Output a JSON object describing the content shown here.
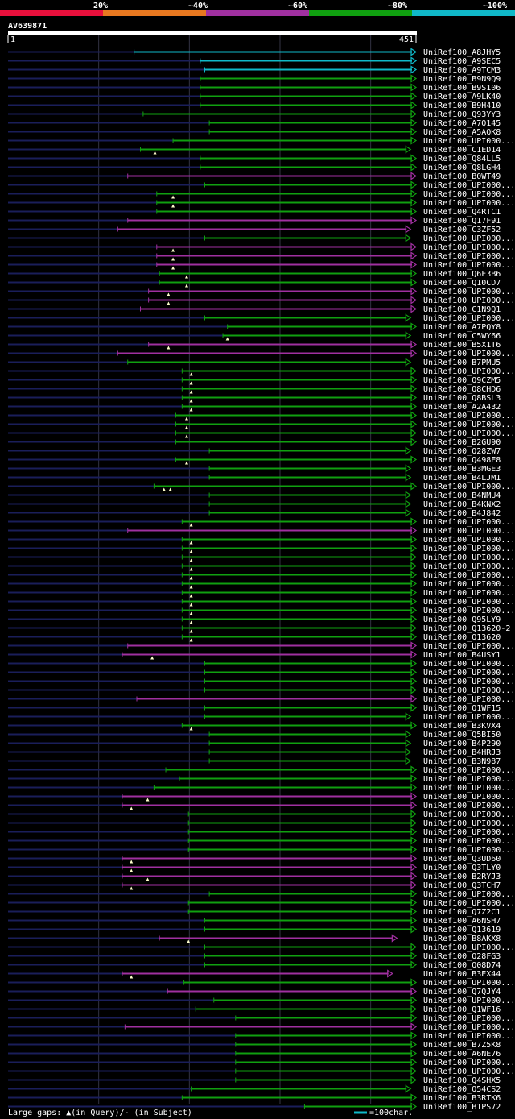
{
  "query_id": "AV639871",
  "query_start": "1",
  "query_end": "451",
  "query_length": 451,
  "legend": {
    "labels": [
      "20%",
      "~40%",
      "~60%",
      "~80%",
      "~100%"
    ],
    "colors": [
      "#e8103c",
      "#e87820",
      "#a030a0",
      "#10a010",
      "#10b8c8"
    ]
  },
  "footer": {
    "text": "Large gaps: ▲(in Query)/- (in Subject)",
    "scale": "=100char."
  },
  "chart_data": {
    "type": "alignment",
    "x_range": [
      1,
      451
    ],
    "grid_step": 100,
    "level_colors": {
      "cyan": "#10b8c8",
      "green": "#10a010",
      "magenta": "#a030a0"
    },
    "hits": [
      {
        "name": "UniRef100_A8JHY5",
        "start": 140,
        "end": 451,
        "level": "cyan",
        "ins": []
      },
      {
        "name": "UniRef100_A9SEC5",
        "start": 213,
        "end": 451,
        "level": "cyan",
        "ins": []
      },
      {
        "name": "UniRef100_A9TCM3",
        "start": 218,
        "end": 451,
        "level": "cyan",
        "ins": []
      },
      {
        "name": "UniRef100_B9N9Q9",
        "start": 213,
        "end": 451,
        "level": "green",
        "ins": []
      },
      {
        "name": "UniRef100_B9S106",
        "start": 213,
        "end": 451,
        "level": "green",
        "ins": []
      },
      {
        "name": "UniRef100_A9LK40",
        "start": 213,
        "end": 451,
        "level": "green",
        "ins": []
      },
      {
        "name": "UniRef100_B9H410",
        "start": 213,
        "end": 451,
        "level": "green",
        "ins": []
      },
      {
        "name": "UniRef100_Q93YY3",
        "start": 150,
        "end": 451,
        "level": "green",
        "ins": []
      },
      {
        "name": "UniRef100_A7Q145",
        "start": 223,
        "end": 451,
        "level": "green",
        "ins": []
      },
      {
        "name": "UniRef100_A5AQK8",
        "start": 223,
        "end": 451,
        "level": "green",
        "ins": []
      },
      {
        "name": "UniRef100_UPI000...",
        "start": 183,
        "end": 451,
        "level": "green",
        "ins": []
      },
      {
        "name": "UniRef100_C1ED14",
        "start": 147,
        "end": 445,
        "level": "green",
        "ins": [
          163
        ]
      },
      {
        "name": "UniRef100_Q84LL5",
        "start": 213,
        "end": 451,
        "level": "green",
        "ins": []
      },
      {
        "name": "UniRef100_Q8LGH4",
        "start": 213,
        "end": 451,
        "level": "green",
        "ins": []
      },
      {
        "name": "UniRef100_B0WT49",
        "start": 133,
        "end": 451,
        "level": "magenta",
        "ins": []
      },
      {
        "name": "UniRef100_UPI000...",
        "start": 218,
        "end": 451,
        "level": "green",
        "ins": []
      },
      {
        "name": "UniRef100_UPI000...",
        "start": 165,
        "end": 451,
        "level": "green",
        "ins": [
          183
        ]
      },
      {
        "name": "UniRef100_UPI000...",
        "start": 165,
        "end": 451,
        "level": "green",
        "ins": [
          183
        ]
      },
      {
        "name": "UniRef100_Q4RTC1",
        "start": 165,
        "end": 451,
        "level": "green",
        "ins": []
      },
      {
        "name": "UniRef100_Q17F91",
        "start": 133,
        "end": 451,
        "level": "magenta",
        "ins": []
      },
      {
        "name": "UniRef100_C3ZF52",
        "start": 122,
        "end": 445,
        "level": "magenta",
        "ins": []
      },
      {
        "name": "UniRef100_UPI000...",
        "start": 218,
        "end": 445,
        "level": "green",
        "ins": []
      },
      {
        "name": "UniRef100_UPI000...",
        "start": 165,
        "end": 451,
        "level": "magenta",
        "ins": [
          183
        ]
      },
      {
        "name": "UniRef100_UPI000...",
        "start": 165,
        "end": 451,
        "level": "magenta",
        "ins": [
          183
        ]
      },
      {
        "name": "UniRef100_UPI000...",
        "start": 165,
        "end": 451,
        "level": "magenta",
        "ins": [
          183
        ]
      },
      {
        "name": "UniRef100_Q6F3B6",
        "start": 168,
        "end": 451,
        "level": "green",
        "ins": [
          198
        ]
      },
      {
        "name": "UniRef100_Q10CD7",
        "start": 168,
        "end": 451,
        "level": "green",
        "ins": [
          198
        ]
      },
      {
        "name": "UniRef100_UPI000...",
        "start": 156,
        "end": 451,
        "level": "magenta",
        "ins": [
          178
        ]
      },
      {
        "name": "UniRef100_UPI000...",
        "start": 156,
        "end": 451,
        "level": "magenta",
        "ins": [
          178
        ]
      },
      {
        "name": "UniRef100_C1N9Q1",
        "start": 147,
        "end": 451,
        "level": "magenta",
        "ins": []
      },
      {
        "name": "UniRef100_UPI000...",
        "start": 218,
        "end": 445,
        "level": "green",
        "ins": []
      },
      {
        "name": "UniRef100_A7PQY8",
        "start": 243,
        "end": 451,
        "level": "green",
        "ins": []
      },
      {
        "name": "UniRef100_C5WY66",
        "start": 238,
        "end": 445,
        "level": "green",
        "ins": [
          243
        ]
      },
      {
        "name": "UniRef100_B5X1T6",
        "start": 156,
        "end": 451,
        "level": "magenta",
        "ins": [
          178
        ]
      },
      {
        "name": "UniRef100_UPI000...",
        "start": 122,
        "end": 451,
        "level": "magenta",
        "ins": []
      },
      {
        "name": "UniRef100_B7PMU5",
        "start": 133,
        "end": 445,
        "level": "green",
        "ins": []
      },
      {
        "name": "UniRef100_UPI000...",
        "start": 193,
        "end": 451,
        "level": "green",
        "ins": [
          203
        ]
      },
      {
        "name": "UniRef100_Q9CZM5",
        "start": 193,
        "end": 451,
        "level": "green",
        "ins": [
          203
        ]
      },
      {
        "name": "UniRef100_Q8CHD6",
        "start": 193,
        "end": 451,
        "level": "green",
        "ins": [
          203
        ]
      },
      {
        "name": "UniRef100_Q8BSL3",
        "start": 193,
        "end": 451,
        "level": "green",
        "ins": [
          203
        ]
      },
      {
        "name": "UniRef100_A2A432",
        "start": 193,
        "end": 451,
        "level": "green",
        "ins": [
          203
        ]
      },
      {
        "name": "UniRef100_UPI000...",
        "start": 186,
        "end": 451,
        "level": "green",
        "ins": [
          198
        ]
      },
      {
        "name": "UniRef100_UPI000...",
        "start": 186,
        "end": 451,
        "level": "green",
        "ins": [
          198
        ]
      },
      {
        "name": "UniRef100_UPI000...",
        "start": 186,
        "end": 451,
        "level": "green",
        "ins": [
          198
        ]
      },
      {
        "name": "UniRef100_B2GU90",
        "start": 186,
        "end": 451,
        "level": "green",
        "ins": []
      },
      {
        "name": "UniRef100_Q28ZW7",
        "start": 223,
        "end": 445,
        "level": "green",
        "ins": []
      },
      {
        "name": "UniRef100_Q498E8",
        "start": 186,
        "end": 451,
        "level": "green",
        "ins": [
          198
        ]
      },
      {
        "name": "UniRef100_B3MGE3",
        "start": 223,
        "end": 445,
        "level": "green",
        "ins": []
      },
      {
        "name": "UniRef100_B4LJM1",
        "start": 223,
        "end": 445,
        "level": "green",
        "ins": []
      },
      {
        "name": "UniRef100_UPI000...",
        "start": 162,
        "end": 451,
        "level": "green",
        "ins": [
          173,
          180
        ]
      },
      {
        "name": "UniRef100_B4NMU4",
        "start": 223,
        "end": 445,
        "level": "green",
        "ins": []
      },
      {
        "name": "UniRef100_B4KNX2",
        "start": 223,
        "end": 445,
        "level": "green",
        "ins": []
      },
      {
        "name": "UniRef100_B4J842",
        "start": 223,
        "end": 445,
        "level": "green",
        "ins": []
      },
      {
        "name": "UniRef100_UPI000...",
        "start": 193,
        "end": 451,
        "level": "green",
        "ins": [
          203
        ]
      },
      {
        "name": "UniRef100_UPI000...",
        "start": 133,
        "end": 451,
        "level": "magenta",
        "ins": []
      },
      {
        "name": "UniRef100_UPI000...",
        "start": 193,
        "end": 451,
        "level": "green",
        "ins": [
          203
        ]
      },
      {
        "name": "UniRef100_UPI000...",
        "start": 193,
        "end": 451,
        "level": "green",
        "ins": [
          203
        ]
      },
      {
        "name": "UniRef100_UPI000...",
        "start": 193,
        "end": 451,
        "level": "green",
        "ins": [
          203
        ]
      },
      {
        "name": "UniRef100_UPI000...",
        "start": 193,
        "end": 451,
        "level": "green",
        "ins": [
          203
        ]
      },
      {
        "name": "UniRef100_UPI000...",
        "start": 193,
        "end": 451,
        "level": "green",
        "ins": [
          203
        ]
      },
      {
        "name": "UniRef100_UPI000...",
        "start": 193,
        "end": 451,
        "level": "green",
        "ins": [
          203
        ]
      },
      {
        "name": "UniRef100_UPI000...",
        "start": 193,
        "end": 451,
        "level": "green",
        "ins": [
          203
        ]
      },
      {
        "name": "UniRef100_UPI000...",
        "start": 193,
        "end": 451,
        "level": "green",
        "ins": [
          203
        ]
      },
      {
        "name": "UniRef100_UPI000...",
        "start": 193,
        "end": 451,
        "level": "green",
        "ins": [
          203
        ]
      },
      {
        "name": "UniRef100_Q95LY9",
        "start": 193,
        "end": 451,
        "level": "green",
        "ins": [
          203
        ]
      },
      {
        "name": "UniRef100_Q13620-2",
        "start": 193,
        "end": 451,
        "level": "green",
        "ins": [
          203
        ]
      },
      {
        "name": "UniRef100_Q13620",
        "start": 193,
        "end": 451,
        "level": "green",
        "ins": [
          203
        ]
      },
      {
        "name": "UniRef100_UPI000...",
        "start": 133,
        "end": 451,
        "level": "magenta",
        "ins": []
      },
      {
        "name": "UniRef100_B4USY1",
        "start": 127,
        "end": 451,
        "level": "magenta",
        "ins": [
          160
        ]
      },
      {
        "name": "UniRef100_UPI000...",
        "start": 218,
        "end": 451,
        "level": "green",
        "ins": []
      },
      {
        "name": "UniRef100_UPI000...",
        "start": 218,
        "end": 451,
        "level": "green",
        "ins": []
      },
      {
        "name": "UniRef100_UPI000...",
        "start": 218,
        "end": 451,
        "level": "green",
        "ins": []
      },
      {
        "name": "UniRef100_UPI000...",
        "start": 218,
        "end": 451,
        "level": "green",
        "ins": []
      },
      {
        "name": "UniRef100_UPI000...",
        "start": 143,
        "end": 451,
        "level": "magenta",
        "ins": []
      },
      {
        "name": "UniRef100_Q1WF15",
        "start": 218,
        "end": 451,
        "level": "green",
        "ins": []
      },
      {
        "name": "UniRef100_UPI000...",
        "start": 218,
        "end": 445,
        "level": "green",
        "ins": []
      },
      {
        "name": "UniRef100_B3KVX4",
        "start": 193,
        "end": 451,
        "level": "green",
        "ins": [
          203
        ]
      },
      {
        "name": "UniRef100_Q5BI50",
        "start": 223,
        "end": 445,
        "level": "green",
        "ins": []
      },
      {
        "name": "UniRef100_B4P290",
        "start": 223,
        "end": 445,
        "level": "green",
        "ins": []
      },
      {
        "name": "UniRef100_B4HRJ3",
        "start": 223,
        "end": 445,
        "level": "green",
        "ins": []
      },
      {
        "name": "UniRef100_B3N987",
        "start": 223,
        "end": 445,
        "level": "green",
        "ins": []
      },
      {
        "name": "UniRef100_UPI000...",
        "start": 175,
        "end": 451,
        "level": "green",
        "ins": []
      },
      {
        "name": "UniRef100_UPI000...",
        "start": 190,
        "end": 451,
        "level": "green",
        "ins": []
      },
      {
        "name": "UniRef100_UPI000...",
        "start": 162,
        "end": 451,
        "level": "green",
        "ins": []
      },
      {
        "name": "UniRef100_UPI000...",
        "start": 127,
        "end": 451,
        "level": "magenta",
        "ins": [
          155
        ]
      },
      {
        "name": "UniRef100_UPI000...",
        "start": 127,
        "end": 451,
        "level": "magenta",
        "ins": [
          137
        ]
      },
      {
        "name": "UniRef100_UPI000...",
        "start": 200,
        "end": 451,
        "level": "green",
        "ins": []
      },
      {
        "name": "UniRef100_UPI000...",
        "start": 200,
        "end": 451,
        "level": "green",
        "ins": []
      },
      {
        "name": "UniRef100_UPI000...",
        "start": 200,
        "end": 451,
        "level": "green",
        "ins": []
      },
      {
        "name": "UniRef100_UPI000...",
        "start": 200,
        "end": 451,
        "level": "green",
        "ins": []
      },
      {
        "name": "UniRef100_UPI000...",
        "start": 200,
        "end": 451,
        "level": "green",
        "ins": []
      },
      {
        "name": "UniRef100_Q3UD60",
        "start": 127,
        "end": 451,
        "level": "magenta",
        "ins": [
          137
        ]
      },
      {
        "name": "UniRef100_Q3TLY0",
        "start": 127,
        "end": 451,
        "level": "magenta",
        "ins": [
          137
        ]
      },
      {
        "name": "UniRef100_B2RYJ3",
        "start": 127,
        "end": 451,
        "level": "magenta",
        "ins": [
          155
        ]
      },
      {
        "name": "UniRef100_Q3TCH7",
        "start": 127,
        "end": 451,
        "level": "magenta",
        "ins": [
          137
        ]
      },
      {
        "name": "UniRef100_UPI000...",
        "start": 223,
        "end": 451,
        "level": "green",
        "ins": []
      },
      {
        "name": "UniRef100_UPI000...",
        "start": 200,
        "end": 451,
        "level": "green",
        "ins": []
      },
      {
        "name": "UniRef100_Q7Z2C1",
        "start": 200,
        "end": 451,
        "level": "green",
        "ins": []
      },
      {
        "name": "UniRef100_A6NSH7",
        "start": 218,
        "end": 451,
        "level": "green",
        "ins": []
      },
      {
        "name": "UniRef100_Q13619",
        "start": 218,
        "end": 451,
        "level": "green",
        "ins": []
      },
      {
        "name": "UniRef100_B8AKX8",
        "start": 168,
        "end": 430,
        "level": "magenta",
        "ins": [
          200
        ]
      },
      {
        "name": "UniRef100_UPI000...",
        "start": 218,
        "end": 451,
        "level": "green",
        "ins": []
      },
      {
        "name": "UniRef100_Q28FG3",
        "start": 218,
        "end": 451,
        "level": "green",
        "ins": []
      },
      {
        "name": "UniRef100_Q08D74",
        "start": 218,
        "end": 451,
        "level": "green",
        "ins": []
      },
      {
        "name": "UniRef100_B3EX44",
        "start": 127,
        "end": 425,
        "level": "magenta",
        "ins": [
          137
        ]
      },
      {
        "name": "UniRef100_UPI000...",
        "start": 195,
        "end": 451,
        "level": "green",
        "ins": []
      },
      {
        "name": "UniRef100_Q7QJY4",
        "start": 177,
        "end": 451,
        "level": "magenta",
        "ins": []
      },
      {
        "name": "UniRef100_UPI000...",
        "start": 228,
        "end": 451,
        "level": "green",
        "ins": []
      },
      {
        "name": "UniRef100_Q1WF16",
        "start": 208,
        "end": 451,
        "level": "green",
        "ins": []
      },
      {
        "name": "UniRef100_UPI000...",
        "start": 252,
        "end": 451,
        "level": "green",
        "ins": []
      },
      {
        "name": "UniRef100_UPI000...",
        "start": 130,
        "end": 451,
        "level": "magenta",
        "ins": []
      },
      {
        "name": "UniRef100_UPI000...",
        "start": 252,
        "end": 451,
        "level": "green",
        "ins": []
      },
      {
        "name": "UniRef100_B7Z5K8",
        "start": 252,
        "end": 451,
        "level": "green",
        "ins": []
      },
      {
        "name": "UniRef100_A6NE76",
        "start": 252,
        "end": 451,
        "level": "green",
        "ins": []
      },
      {
        "name": "UniRef100_UPI000...",
        "start": 252,
        "end": 451,
        "level": "green",
        "ins": []
      },
      {
        "name": "UniRef100_UPI000...",
        "start": 252,
        "end": 451,
        "level": "green",
        "ins": []
      },
      {
        "name": "UniRef100_Q4SHX5",
        "start": 252,
        "end": 451,
        "level": "green",
        "ins": []
      },
      {
        "name": "UniRef100_Q54CS2",
        "start": 203,
        "end": 445,
        "level": "green",
        "ins": []
      },
      {
        "name": "UniRef100_B3RTK6",
        "start": 193,
        "end": 451,
        "level": "green",
        "ins": []
      },
      {
        "name": "UniRef100_B1PS72",
        "start": 328,
        "end": 451,
        "level": "green",
        "ins": []
      }
    ]
  }
}
